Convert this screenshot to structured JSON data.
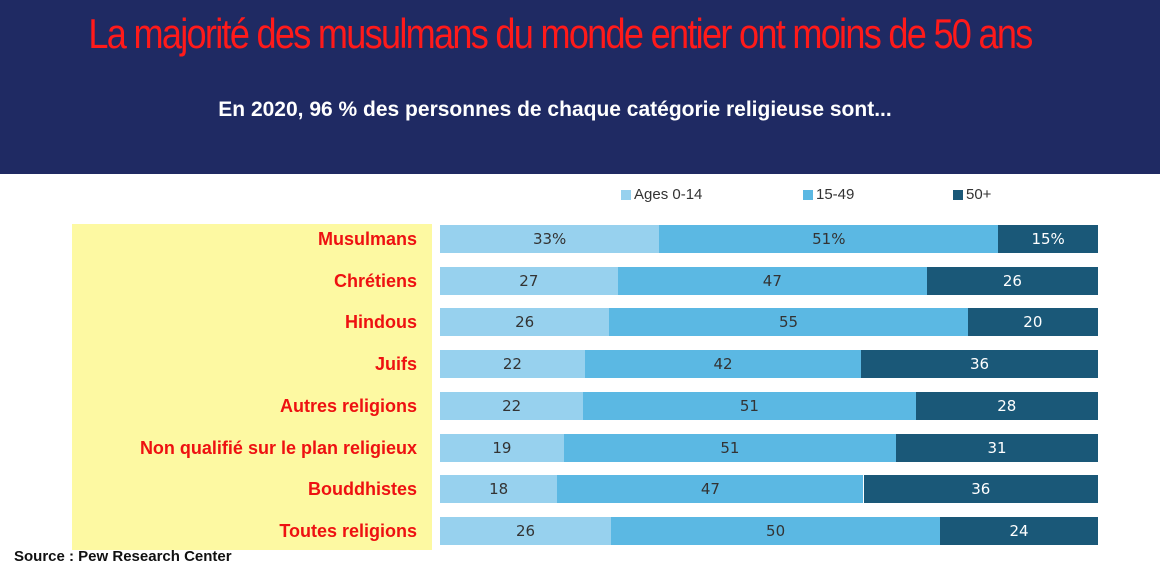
{
  "header": {
    "title": "La majorité des musulmans du monde entier ont moins de 50 ans",
    "subtitle": "En 2020, 96 % des personnes de chaque catégorie religieuse sont..."
  },
  "source": "Source : Pew Research Center",
  "colors": {
    "banner": "#1f2a63",
    "title": "#ff1a1a",
    "label_panel": "#fdf9a2",
    "label_text": "#ee1111",
    "age_0_14": "#97d1ee",
    "age_15_49": "#5bb8e3",
    "age_50_plus": "#1a5878"
  },
  "chart_data": {
    "type": "bar",
    "orientation": "horizontal",
    "stacked": true,
    "normalized": true,
    "legend_position": "top",
    "categories": [
      "Musulmans",
      "Chrétiens",
      "Hindous",
      "Juifs",
      "Autres religions",
      "Non qualifié sur le plan religieux",
      "Bouddhistes",
      "Toutes religions"
    ],
    "series": [
      {
        "name": "Ages 0-14",
        "values": [
          33,
          27,
          26,
          22,
          22,
          19,
          18,
          26
        ],
        "labels": [
          "33%",
          "27",
          "26",
          "22",
          "22",
          "19",
          "18",
          "26"
        ]
      },
      {
        "name": "15-49",
        "values": [
          51,
          47,
          55,
          42,
          51,
          51,
          47,
          50
        ],
        "labels": [
          "51%",
          "47",
          "55",
          "42",
          "51",
          "51",
          "47",
          "50"
        ]
      },
      {
        "name": "50+",
        "values": [
          15,
          26,
          20,
          36,
          28,
          31,
          36,
          24
        ],
        "labels": [
          "15%",
          "26",
          "20",
          "36",
          "28",
          "31",
          "36",
          "24"
        ]
      }
    ]
  }
}
